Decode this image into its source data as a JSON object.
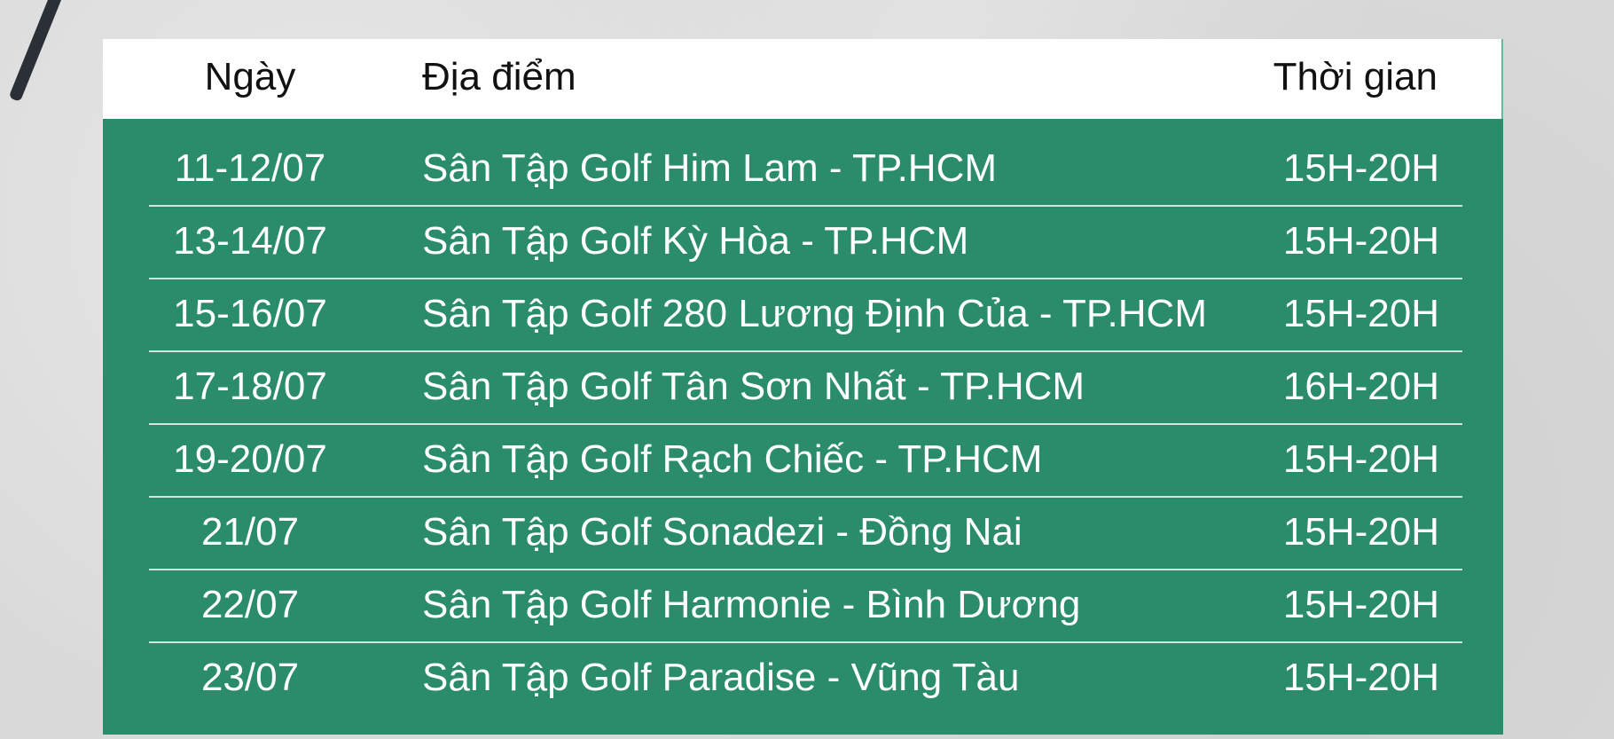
{
  "colors": {
    "header_bg": "#ffffff",
    "body_bg": "#2a8c6b",
    "text_light": "#ffffff",
    "text_dark": "#111111"
  },
  "table": {
    "headers": {
      "date": "Ngày",
      "location": "Địa điểm",
      "time": "Thời gian"
    },
    "rows": [
      {
        "date": "11-12/07",
        "location": "Sân Tập Golf Him Lam - TP.HCM",
        "time": "15H-20H"
      },
      {
        "date": "13-14/07",
        "location": "Sân Tập Golf Kỳ Hòa - TP.HCM",
        "time": "15H-20H"
      },
      {
        "date": "15-16/07",
        "location": "Sân Tập Golf 280 Lương Định Của - TP.HCM",
        "time": "15H-20H"
      },
      {
        "date": "17-18/07",
        "location": "Sân Tập Golf Tân Sơn Nhất - TP.HCM",
        "time": "16H-20H"
      },
      {
        "date": "19-20/07",
        "location": "Sân Tập Golf Rạch Chiếc - TP.HCM",
        "time": "15H-20H"
      },
      {
        "date": "21/07",
        "location": "Sân Tập Golf Sonadezi - Đồng Nai",
        "time": "15H-20H"
      },
      {
        "date": "22/07",
        "location": "Sân Tập Golf Harmonie - Bình Dương",
        "time": "15H-20H"
      },
      {
        "date": "23/07",
        "location": "Sân Tập Golf Paradise - Vũng Tàu",
        "time": "15H-20H"
      }
    ]
  }
}
